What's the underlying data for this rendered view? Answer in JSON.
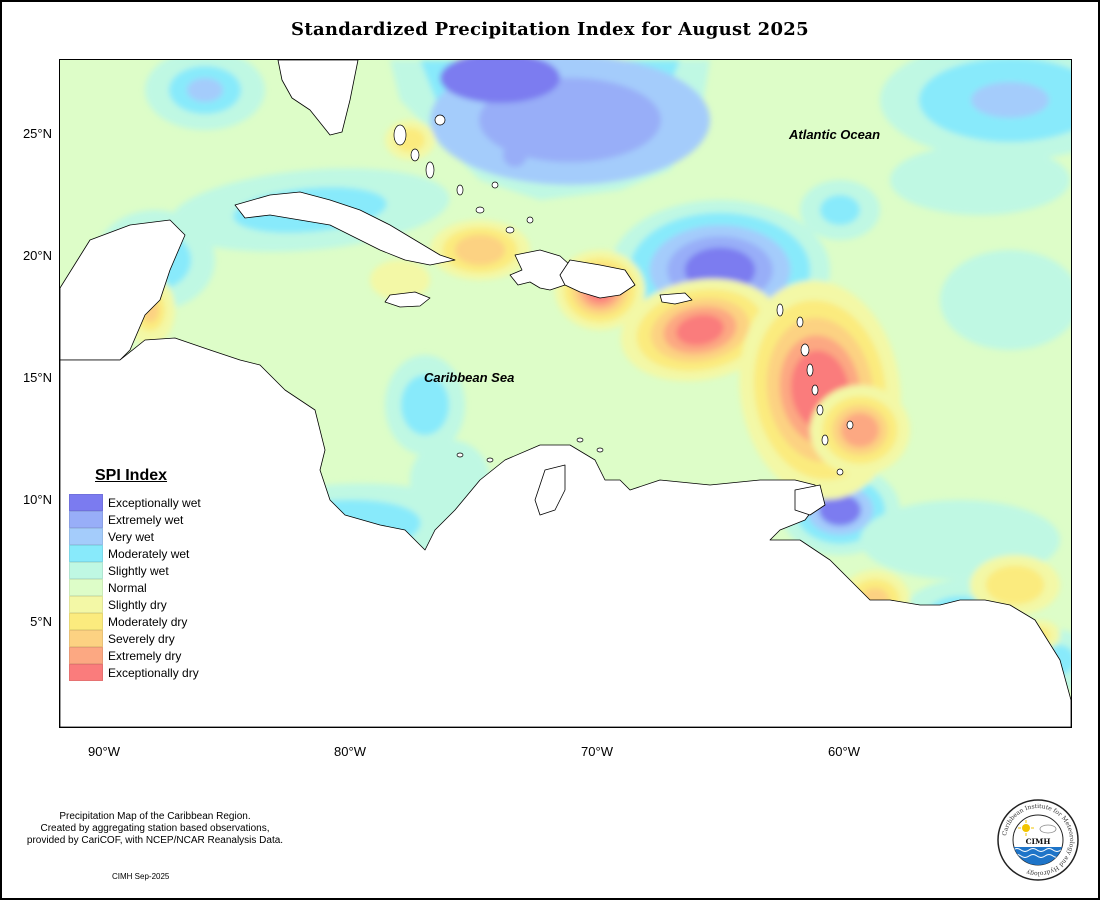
{
  "title": "Standardized Precipitation Index for August 2025",
  "map": {
    "y_axis_labels": [
      "25°N",
      "20°N",
      "15°N",
      "10°N",
      "5°N"
    ],
    "x_axis_labels": [
      "90°W",
      "80°W",
      "70°W",
      "60°W"
    ],
    "annotations": {
      "atlantic": "Atlantic Ocean",
      "caribbean": "Caribbean Sea"
    }
  },
  "legend": {
    "title": "SPI Index",
    "items": [
      {
        "label": "Exceptionally wet",
        "color": "#7b7bf0"
      },
      {
        "label": "Extremely wet",
        "color": "#98aef8"
      },
      {
        "label": "Very wet",
        "color": "#a4ccfb"
      },
      {
        "label": "Moderately wet",
        "color": "#88eafb"
      },
      {
        "label": "Slightly wet",
        "color": "#bff8e3"
      },
      {
        "label": "Normal",
        "color": "#ddfdc8"
      },
      {
        "label": "Slightly dry",
        "color": "#f3f8a6"
      },
      {
        "label": "Moderately dry",
        "color": "#fbeb7e"
      },
      {
        "label": "Severely dry",
        "color": "#fcd282"
      },
      {
        "label": "Extremely dry",
        "color": "#fca882"
      },
      {
        "label": "Exceptionally dry",
        "color": "#fa7c7c"
      }
    ]
  },
  "footnote": [
    "Precipitation Map of the Caribbean Region.",
    "Created by aggregating station based observations,",
    "provided by CariCOF, with NCEP/NCAR Reanalysis Data."
  ],
  "credit": "CIMH Sep-2025",
  "logo": {
    "ring_text": "Caribbean Institute for Meteorology and Hydrology",
    "center_text": "CIMH"
  }
}
